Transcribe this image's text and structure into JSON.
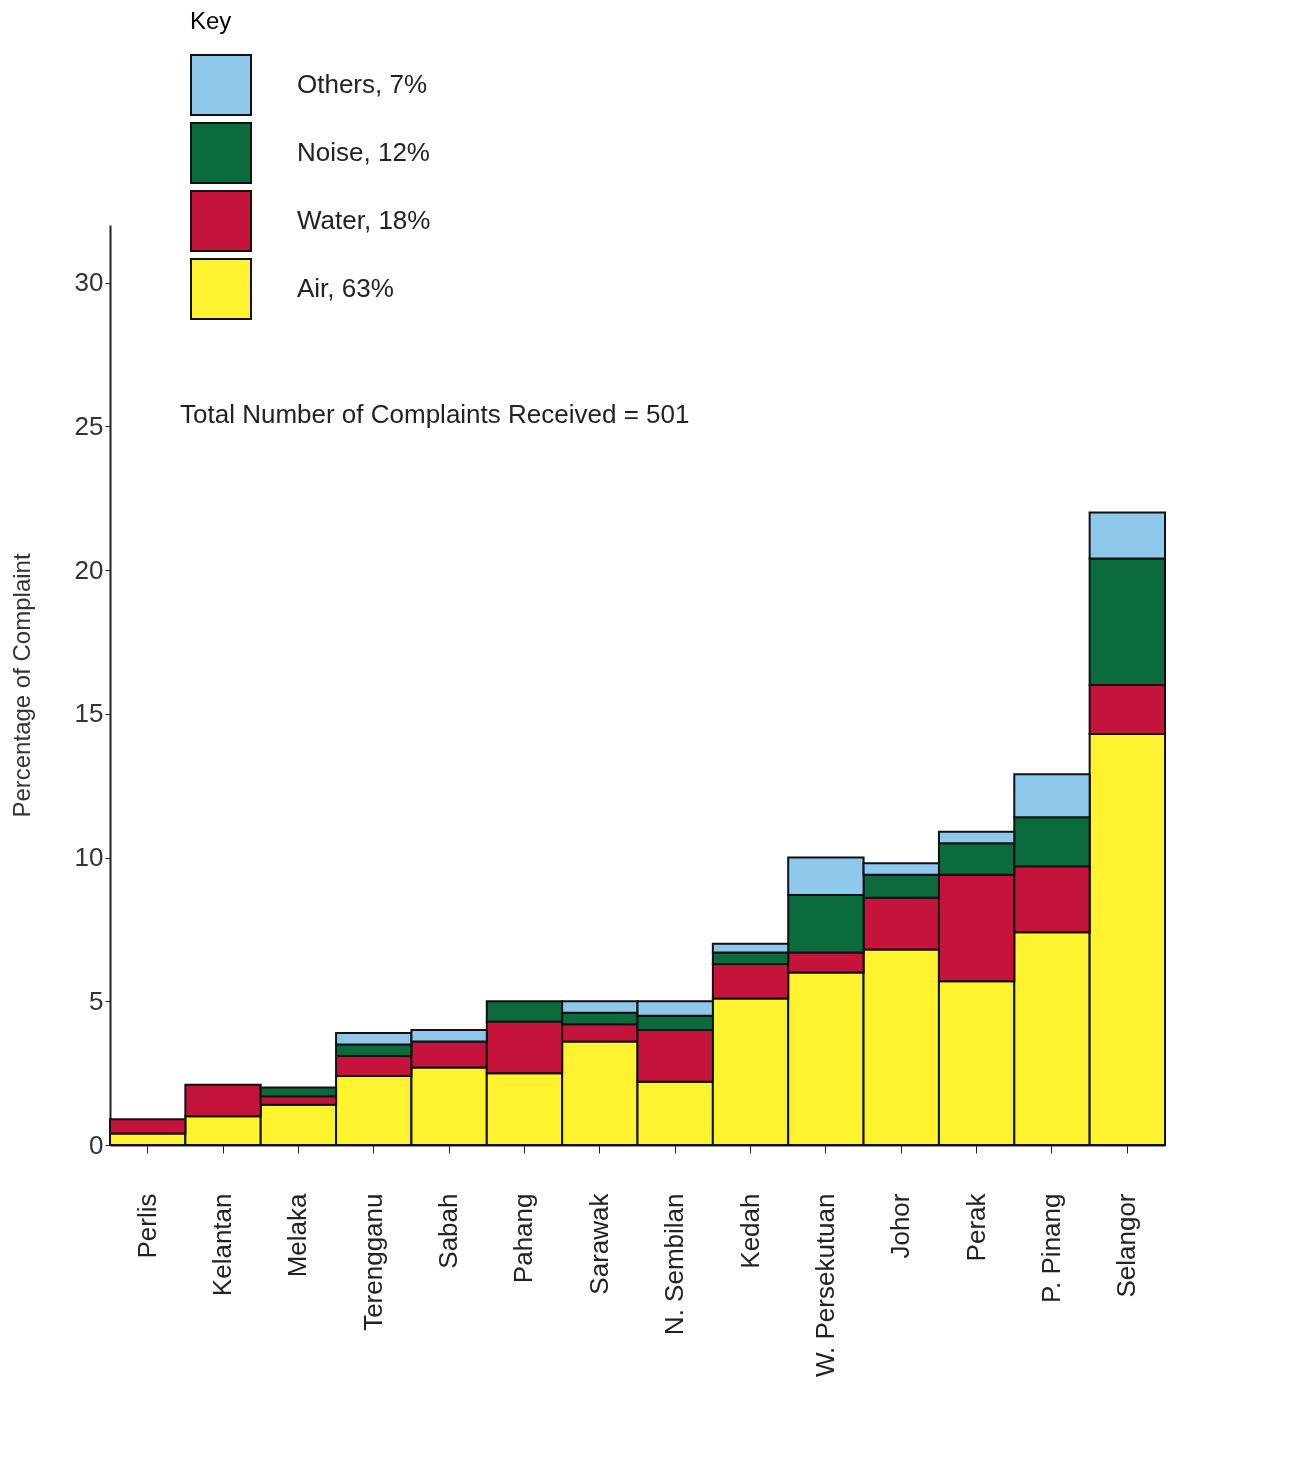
{
  "chart_data": {
    "type": "bar",
    "stacked": true,
    "ylabel": "Percentage of Complaint",
    "legend_title": "Key",
    "legend": "top left",
    "annotations": [
      "Total Number of Complaints Received = 501"
    ],
    "categories": [
      "Perlis",
      "Kelantan",
      "Melaka",
      "Terengganu",
      "Sabah",
      "Pahang",
      "Sarawak",
      "N. Sembilan",
      "Kedah",
      "W. Persekutuan",
      "Johor",
      "Perak",
      "P. Pinang",
      "Selangor"
    ],
    "series": [
      {
        "name": "Air, 63%",
        "color": "#fff22e",
        "values": [
          0.4,
          1.0,
          1.4,
          2.4,
          2.7,
          2.5,
          3.6,
          2.2,
          5.1,
          6.0,
          6.8,
          5.7,
          7.4,
          14.3
        ]
      },
      {
        "name": "Water, 18%",
        "color": "#c4143c",
        "values": [
          0.5,
          1.1,
          0.3,
          0.7,
          0.9,
          1.8,
          0.6,
          1.8,
          1.2,
          0.7,
          1.8,
          3.7,
          2.3,
          1.7
        ]
      },
      {
        "name": "Noise, 12%",
        "color": "#0b6b3c",
        "values": [
          null,
          null,
          0.3,
          0.4,
          null,
          0.7,
          0.4,
          0.5,
          0.4,
          2.0,
          0.8,
          1.1,
          1.7,
          4.4
        ]
      },
      {
        "name": "Others, 7%",
        "color": "#8ec9ec",
        "values": [
          null,
          null,
          null,
          0.4,
          0.4,
          null,
          0.4,
          0.5,
          0.3,
          1.3,
          0.4,
          0.4,
          1.5,
          1.6
        ]
      }
    ],
    "ylim": [
      0,
      32
    ],
    "yticks": [
      0,
      5,
      10,
      15,
      20,
      25,
      30
    ]
  }
}
